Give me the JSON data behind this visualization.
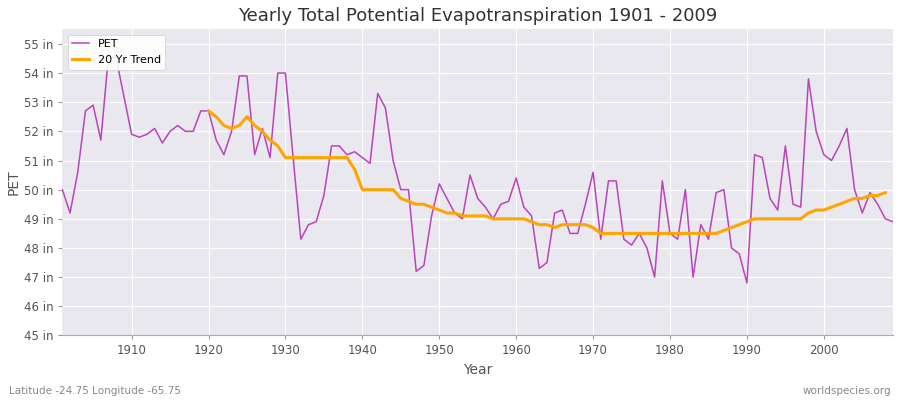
{
  "title": "Yearly Total Potential Evapotranspiration 1901 - 2009",
  "xlabel": "Year",
  "ylabel": "PET",
  "footnote_left": "Latitude -24.75 Longitude -65.75",
  "footnote_right": "worldspecies.org",
  "ylim": [
    45,
    55.5
  ],
  "xlim": [
    1901,
    2009
  ],
  "yticks": [
    45,
    46,
    47,
    48,
    49,
    50,
    51,
    52,
    53,
    54,
    55
  ],
  "ytick_labels": [
    "45 in",
    "46 in",
    "47 in",
    "48 in",
    "49 in",
    "50 in",
    "51 in",
    "52 in",
    "53 in",
    "54 in",
    "55 in"
  ],
  "xticks": [
    1910,
    1920,
    1930,
    1940,
    1950,
    1960,
    1970,
    1980,
    1990,
    2000
  ],
  "pet_color": "#BB44BB",
  "trend_color": "#FFA500",
  "fig_background_color": "#FFFFFF",
  "plot_background_color": "#E8E8EE",
  "grid_color": "#FFFFFF",
  "pet_data": {
    "years": [
      1901,
      1902,
      1903,
      1904,
      1905,
      1906,
      1907,
      1908,
      1909,
      1910,
      1911,
      1912,
      1913,
      1914,
      1915,
      1916,
      1917,
      1918,
      1919,
      1920,
      1921,
      1922,
      1923,
      1924,
      1925,
      1926,
      1927,
      1928,
      1929,
      1930,
      1931,
      1932,
      1933,
      1934,
      1935,
      1936,
      1937,
      1938,
      1939,
      1940,
      1941,
      1942,
      1943,
      1944,
      1945,
      1946,
      1947,
      1948,
      1949,
      1950,
      1951,
      1952,
      1953,
      1954,
      1955,
      1956,
      1957,
      1958,
      1959,
      1960,
      1961,
      1962,
      1963,
      1964,
      1965,
      1966,
      1967,
      1968,
      1969,
      1970,
      1971,
      1972,
      1973,
      1974,
      1975,
      1976,
      1977,
      1978,
      1979,
      1980,
      1981,
      1982,
      1983,
      1984,
      1985,
      1986,
      1987,
      1988,
      1989,
      1990,
      1991,
      1992,
      1993,
      1994,
      1995,
      1996,
      1997,
      1998,
      1999,
      2000,
      2001,
      2002,
      2003,
      2004,
      2005,
      2006,
      2007,
      2008,
      2009
    ],
    "values": [
      50.0,
      49.2,
      50.6,
      52.7,
      52.9,
      51.7,
      54.6,
      54.5,
      53.2,
      51.9,
      51.8,
      51.9,
      52.1,
      51.6,
      52.0,
      52.2,
      52.0,
      52.0,
      52.7,
      52.7,
      51.7,
      51.2,
      52.0,
      53.9,
      53.9,
      51.2,
      52.1,
      51.1,
      54.0,
      54.0,
      51.1,
      48.3,
      48.8,
      48.9,
      49.8,
      51.5,
      51.5,
      51.2,
      51.3,
      51.1,
      50.9,
      53.3,
      52.8,
      51.0,
      50.0,
      50.0,
      47.2,
      47.4,
      49.1,
      50.2,
      49.7,
      49.2,
      49.0,
      50.5,
      49.7,
      49.4,
      49.0,
      49.5,
      49.6,
      50.4,
      49.4,
      49.1,
      47.3,
      47.5,
      49.2,
      49.3,
      48.5,
      48.5,
      49.5,
      50.6,
      48.3,
      50.3,
      50.3,
      48.3,
      48.1,
      48.5,
      48.0,
      47.0,
      50.3,
      48.5,
      48.3,
      50.0,
      47.0,
      48.8,
      48.3,
      49.9,
      50.0,
      48.0,
      47.8,
      46.8,
      51.2,
      51.1,
      49.7,
      49.3,
      51.5,
      49.5,
      49.4,
      53.8,
      52.0,
      51.2,
      51.0,
      51.5,
      52.1,
      50.0,
      49.2,
      49.9,
      49.5,
      49.0,
      48.9
    ]
  },
  "trend_data": {
    "years": [
      1901,
      1902,
      1903,
      1904,
      1905,
      1906,
      1907,
      1908,
      1909,
      1910,
      1911,
      1912,
      1913,
      1914,
      1915,
      1916,
      1917,
      1918,
      1919,
      1920,
      1921,
      1922,
      1923,
      1924,
      1925,
      1926,
      1927,
      1928,
      1929,
      1930,
      1931,
      1932,
      1933,
      1934,
      1935,
      1936,
      1937,
      1938,
      1939,
      1940,
      1941,
      1942,
      1943,
      1944,
      1945,
      1946,
      1947,
      1948,
      1949,
      1950,
      1951,
      1952,
      1953,
      1954,
      1955,
      1956,
      1957,
      1958,
      1959,
      1960,
      1961,
      1962,
      1963,
      1964,
      1965,
      1966,
      1967,
      1968,
      1969,
      1970,
      1971,
      1972,
      1973,
      1974,
      1975,
      1976,
      1977,
      1978,
      1979,
      1980,
      1981,
      1982,
      1983,
      1984,
      1985,
      1986,
      1987,
      1988,
      1989,
      1990,
      1991,
      1992,
      1993,
      1994,
      1995,
      1996,
      1997,
      1998,
      1999,
      2000,
      2001,
      2002,
      2003,
      2004,
      2005,
      2006,
      2007,
      2008,
      2009
    ],
    "values": [
      null,
      null,
      null,
      null,
      null,
      null,
      null,
      null,
      null,
      null,
      null,
      null,
      null,
      null,
      null,
      null,
      null,
      null,
      null,
      52.7,
      52.5,
      52.2,
      52.1,
      52.2,
      52.5,
      52.2,
      52.0,
      51.7,
      51.5,
      51.1,
      51.1,
      51.1,
      51.1,
      51.1,
      51.1,
      51.1,
      51.1,
      51.1,
      50.7,
      50.0,
      50.0,
      50.0,
      50.0,
      50.0,
      49.7,
      49.6,
      49.5,
      49.5,
      49.4,
      49.3,
      49.2,
      49.2,
      49.1,
      49.1,
      49.1,
      49.1,
      49.0,
      49.0,
      49.0,
      49.0,
      49.0,
      48.9,
      48.8,
      48.8,
      48.7,
      48.8,
      48.8,
      48.8,
      48.8,
      48.7,
      48.5,
      48.5,
      48.5,
      48.5,
      48.5,
      48.5,
      48.5,
      48.5,
      48.5,
      48.5,
      48.5,
      48.5,
      48.5,
      48.5,
      48.5,
      48.5,
      48.6,
      48.7,
      48.8,
      48.9,
      49.0,
      49.0,
      49.0,
      49.0,
      49.0,
      49.0,
      49.0,
      49.2,
      49.3,
      49.3,
      49.4,
      49.5,
      49.6,
      49.7,
      49.7,
      49.8,
      49.8,
      49.9,
      null
    ]
  }
}
